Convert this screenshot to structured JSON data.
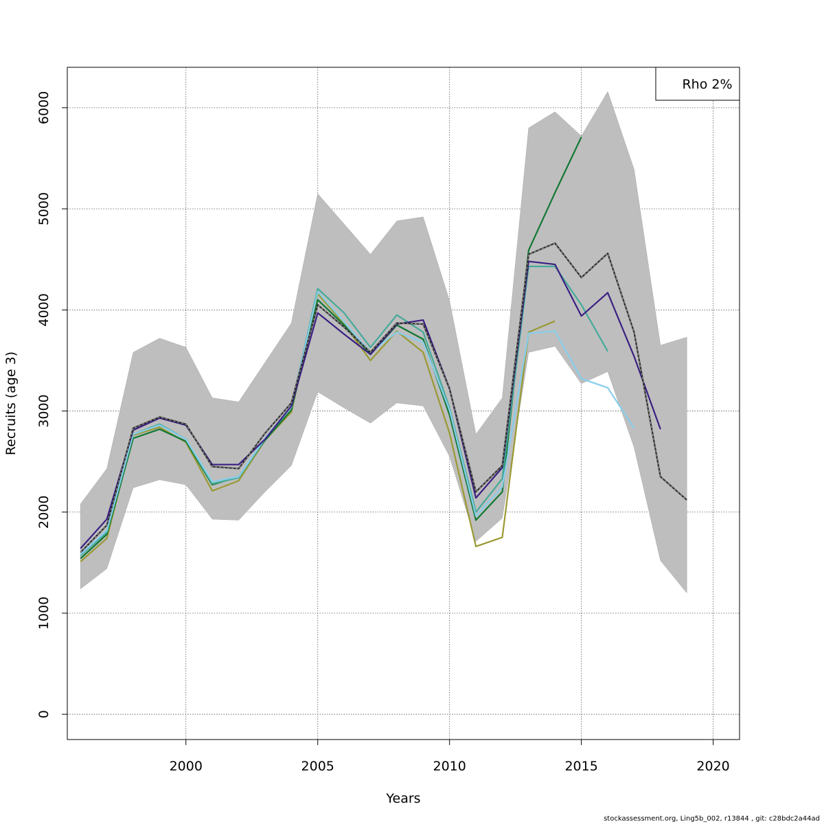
{
  "chart_data": {
    "type": "line",
    "xlabel": "Years",
    "ylabel": "Recruits (age 3)",
    "xlim": [
      1995.5,
      2021
    ],
    "ylim": [
      -250,
      6400
    ],
    "xticks": [
      2000,
      2005,
      2010,
      2015,
      2020
    ],
    "yticks": [
      0,
      1000,
      2000,
      3000,
      4000,
      5000,
      6000
    ],
    "grid": true,
    "legend": {
      "position": "top-right",
      "text": "Rho 2%"
    },
    "uncertainty_band": {
      "x": [
        1996,
        1997,
        1998,
        1999,
        2000,
        2001,
        2002,
        2003,
        2004,
        2005,
        2006,
        2007,
        2008,
        2009,
        2010,
        2011,
        2012,
        2013,
        2014,
        2015,
        2016,
        2017,
        2018,
        2019
      ],
      "upper": [
        2080,
        2430,
        3580,
        3720,
        3630,
        3130,
        3090,
        3480,
        3870,
        5150,
        4850,
        4550,
        4880,
        4920,
        4090,
        2770,
        3130,
        5800,
        5960,
        5720,
        6160,
        5390,
        3650,
        3730
      ],
      "lower": [
        1240,
        1440,
        2240,
        2320,
        2270,
        1930,
        1920,
        2200,
        2460,
        3190,
        3030,
        2880,
        3080,
        3050,
        2550,
        1710,
        1940,
        3580,
        3640,
        3270,
        3390,
        2640,
        1520,
        1200
      ]
    },
    "series": [
      {
        "color": "#2a2a2a",
        "dashed": true,
        "x": [
          1996,
          1997,
          1998,
          1999,
          2000,
          2001,
          2002,
          2003,
          2004,
          2005,
          2006,
          2007,
          2008,
          2009,
          2010,
          2011,
          2012,
          2013,
          2014,
          2015,
          2016,
          2017,
          2018,
          2019
        ],
        "values": [
          1600,
          1870,
          2830,
          2940,
          2870,
          2450,
          2430,
          2780,
          3080,
          4050,
          3830,
          3580,
          3870,
          3860,
          3220,
          2200,
          2460,
          4550,
          4660,
          4320,
          4560,
          3780,
          2350,
          2120
        ]
      },
      {
        "color": "#3a1f82",
        "dashed": false,
        "x": [
          1996,
          1997,
          1998,
          1999,
          2000,
          2001,
          2002,
          2003,
          2004,
          2005,
          2006,
          2007,
          2008,
          2009,
          2010,
          2011,
          2012,
          2013,
          2014,
          2015,
          2016,
          2017,
          2018
        ],
        "values": [
          1640,
          1930,
          2810,
          2930,
          2860,
          2470,
          2470,
          2720,
          3050,
          3970,
          3760,
          3560,
          3860,
          3900,
          3220,
          2140,
          2440,
          4480,
          4450,
          3940,
          4170,
          3540,
          2820
        ]
      },
      {
        "color": "#87ceeb",
        "dashed": false,
        "x": [
          1996,
          1997,
          1998,
          1999,
          2000,
          2001,
          2002,
          2003,
          2004,
          2005,
          2006,
          2007,
          2008,
          2009,
          2010,
          2011,
          2012,
          2013,
          2014,
          2015,
          2016,
          2017
        ],
        "values": [
          1580,
          1820,
          2770,
          2860,
          2720,
          2300,
          2350,
          2730,
          3040,
          4180,
          3880,
          3580,
          3780,
          3680,
          3010,
          1960,
          2250,
          3770,
          3790,
          3320,
          3230,
          2830
        ]
      },
      {
        "color": "#44aa99",
        "dashed": false,
        "x": [
          1996,
          1997,
          1998,
          1999,
          2000,
          2001,
          2002,
          2003,
          2004,
          2005,
          2006,
          2007,
          2008,
          2009,
          2010,
          2011,
          2012,
          2013,
          2014,
          2015,
          2016
        ],
        "values": [
          1570,
          1800,
          2770,
          2870,
          2720,
          2280,
          2340,
          2720,
          3040,
          4210,
          3970,
          3630,
          3950,
          3780,
          3030,
          2000,
          2330,
          4430,
          4430,
          4050,
          3590
        ]
      },
      {
        "color": "#117733",
        "dashed": false,
        "x": [
          1996,
          1997,
          1998,
          1999,
          2000,
          2001,
          2002,
          2003,
          2004,
          2005,
          2006,
          2007,
          2008,
          2009,
          2010,
          2011,
          2012,
          2013,
          2014,
          2015
        ],
        "values": [
          1540,
          1780,
          2730,
          2820,
          2700,
          2270,
          2350,
          2710,
          3010,
          4100,
          3850,
          3560,
          3850,
          3710,
          2960,
          1920,
          2200,
          4590,
          5160,
          5710
        ]
      },
      {
        "color": "#999933",
        "dashed": false,
        "x": [
          1996,
          1997,
          1998,
          1999,
          2000,
          2001,
          2002,
          2003,
          2004,
          2005,
          2006,
          2007,
          2008,
          2009,
          2010,
          2011,
          2012,
          2013,
          2014
        ],
        "values": [
          1510,
          1740,
          2760,
          2840,
          2690,
          2210,
          2310,
          2710,
          2990,
          4160,
          3860,
          3500,
          3790,
          3580,
          2780,
          1660,
          1750,
          3780,
          3890
        ]
      }
    ]
  },
  "footer": {
    "text": "stockassessment.org, Ling5b_002, r13844 , git: c28bdc2a44ad"
  }
}
